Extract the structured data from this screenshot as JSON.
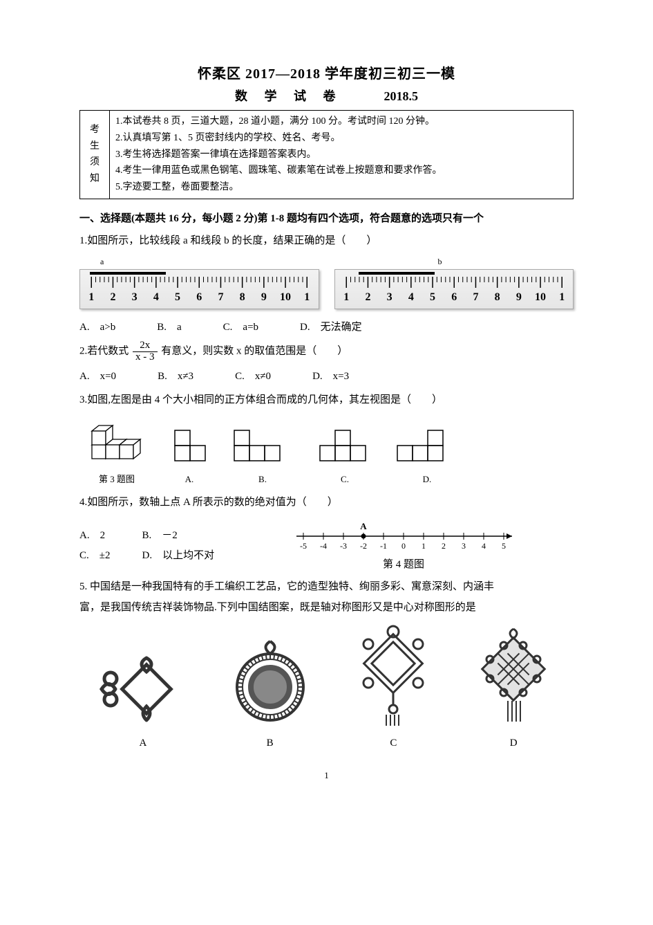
{
  "header": {
    "title": "怀柔区 2017—2018 学年度初三初三一模",
    "subject": "数 学 试 卷",
    "date": "2018.5"
  },
  "notice": {
    "side": "考生须知",
    "lines": [
      "1.本试卷共 8 页，三道大题，28 道小题，满分 100 分。考试时间 120 分钟。",
      "2.认真填写第 1、5 页密封线内的学校、姓名、考号。",
      "3.考生将选择题答案一律填在选择题答案表内。",
      "4.考生一律用蓝色或黑色钢笔、圆珠笔、碳素笔在试卷上按题意和要求作答。",
      "5.字迹要工整，卷面要整洁。"
    ]
  },
  "section1_heading": "一、选择题(本题共 16 分，每小题 2 分)第 1-8 题均有四个选项，符合题意的选项只有一个",
  "q1": {
    "text": "1.如图所示，比较线段 a 和线段 b 的长度，结果正确的是（　　）",
    "labels": {
      "a": "a",
      "b": "b"
    },
    "ruler": {
      "ticks": [
        "1",
        "2",
        "3",
        "4",
        "5",
        "6",
        "7",
        "8",
        "9",
        "10",
        "1"
      ],
      "a_bar": {
        "left_pct": 4,
        "width_pct": 32
      },
      "b_bar": {
        "left_pct": 10,
        "width_pct": 32
      }
    },
    "opts": {
      "A": "a>b",
      "B": "a",
      "C": "a=b",
      "D": "无法确定"
    }
  },
  "q2": {
    "prefix": "2.若代数式",
    "frac_num": "2x",
    "frac_den": "x - 3",
    "suffix": "有意义，则实数 x 的取值范围是（　　）",
    "opts": {
      "A": "x=0",
      "B": "x≠3",
      "C": "x≠0",
      "D": "x=3"
    }
  },
  "q3": {
    "text": "3.如图,左图是由 4 个大小相同的正方体组合而成的几何体，其左视图是（　　）",
    "caption": "第 3 题图",
    "opts_caption": {
      "A": "A.",
      "B": "B.",
      "C": "C.",
      "D": "D."
    }
  },
  "q4": {
    "text": "4.如图所示，数轴上点 A 所表示的数的绝对值为（　　）",
    "opts": {
      "A": "2",
      "B": "－2",
      "C": "±2",
      "D": "以上均不对"
    },
    "caption": "第 4 题图",
    "ticks": [
      "-5",
      "-4",
      "-3",
      "-2",
      "-1",
      "0",
      "1",
      "2",
      "3",
      "4",
      "5"
    ],
    "A_at": -2
  },
  "q5": {
    "text1": "5. 中国结是一种我国特有的手工编织工艺品，它的造型独特、绚丽多彩、寓意深刻、内涵丰",
    "text2": "富，是我国传统吉祥装饰物品.下列中国结图案，既是轴对称图形又是中心对称图形的是",
    "captions": {
      "A": "A",
      "B": "B",
      "C": "C",
      "D": "D"
    }
  },
  "page_num": "1"
}
